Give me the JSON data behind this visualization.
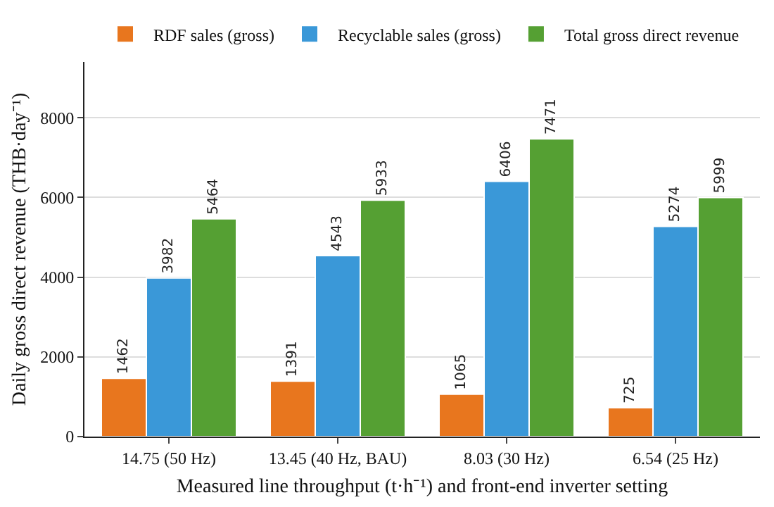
{
  "chart_data": {
    "type": "bar",
    "xlabel": "Measured line throughput (t·h⁻¹) and front-end inverter setting",
    "ylabel": "Daily gross direct revenue (THB·day⁻¹)",
    "categories": [
      "14.75 (50 Hz)",
      "13.45 (40 Hz, BAU)",
      "8.03 (30 Hz)",
      "6.54 (25 Hz)"
    ],
    "series": [
      {
        "name": "RDF sales (gross)",
        "color": "#e8761e",
        "values": [
          1462,
          1391,
          1065,
          725
        ]
      },
      {
        "name": "Recyclable sales (gross)",
        "color": "#3a98d8",
        "values": [
          3982,
          4543,
          6406,
          5274
        ]
      },
      {
        "name": "Total gross direct revenue",
        "color": "#55a033",
        "values": [
          5464,
          5933,
          7471,
          5999
        ]
      }
    ],
    "ylim": [
      0,
      9400
    ],
    "yticks": [
      0,
      2000,
      4000,
      6000,
      8000
    ],
    "grid": "y",
    "legend": "top",
    "data_labels": true
  }
}
